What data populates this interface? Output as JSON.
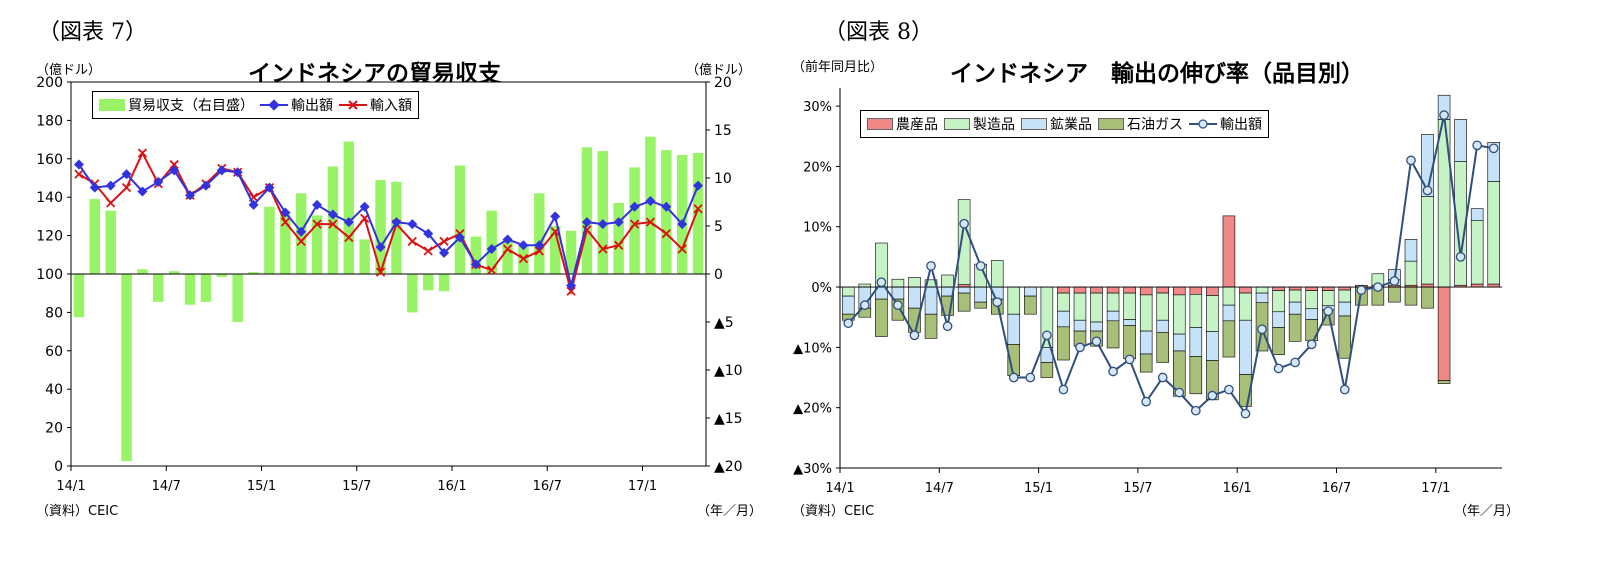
{
  "chart_data": [
    {
      "id": "fig7",
      "type": "bar+line",
      "figure_label": "（図表 7）",
      "title": "インドネシアの貿易収支",
      "ylabel_left": "（億ドル）",
      "ylabel_right": "（億ドル）",
      "xlabel": "（年／月）",
      "source": "（資料）CEIC",
      "ylim_left": [
        0,
        200
      ],
      "ylim_right": [
        -20,
        20
      ],
      "yticks_left": [
        "0",
        "20",
        "40",
        "60",
        "80",
        "100",
        "120",
        "140",
        "160",
        "180",
        "200"
      ],
      "yticks_right": [
        "▲20",
        "▲15",
        "▲10",
        "▲5",
        "0",
        "5",
        "10",
        "15",
        "20"
      ],
      "x_tick_labels": [
        "14/1",
        "14/7",
        "15/1",
        "15/7",
        "16/1",
        "16/7",
        "17/1"
      ],
      "legend": [
        "貿易収支（右目盛）",
        "輸出額",
        "輸入額"
      ],
      "colors": {
        "balance": "#99f366",
        "exports": "#3333dd",
        "imports": "#dd1111"
      },
      "months": [
        "14/1",
        "14/2",
        "14/3",
        "14/4",
        "14/5",
        "14/6",
        "14/7",
        "14/8",
        "14/9",
        "14/10",
        "14/11",
        "14/12",
        "15/1",
        "15/2",
        "15/3",
        "15/4",
        "15/5",
        "15/6",
        "15/7",
        "15/8",
        "15/9",
        "15/10",
        "15/11",
        "15/12",
        "16/1",
        "16/2",
        "16/3",
        "16/4",
        "16/5",
        "16/6",
        "16/7",
        "16/8",
        "16/9",
        "16/10",
        "16/11",
        "16/12",
        "17/1",
        "17/2",
        "17/3",
        "17/4"
      ],
      "series": [
        {
          "name": "貿易収支（右目盛）",
          "kind": "bar",
          "axis": "right",
          "values": [
            -4.5,
            7.8,
            6.6,
            -19.5,
            0.5,
            -2.9,
            0.3,
            -3.2,
            -2.9,
            -0.3,
            -5.0,
            0.2,
            7.0,
            6.5,
            8.4,
            6.1,
            11.2,
            13.8,
            3.6,
            9.8,
            9.6,
            -4.0,
            -1.7,
            -1.8,
            11.3,
            3.9,
            6.6,
            3.5,
            3.0,
            8.4,
            5.0,
            4.5,
            13.2,
            12.8,
            7.4,
            11.1,
            14.3,
            12.9,
            12.4,
            12.6
          ]
        },
        {
          "name": "輸出額",
          "kind": "line",
          "axis": "left",
          "values": [
            157,
            145,
            146,
            152,
            143,
            148,
            154,
            141,
            146,
            154,
            153,
            136,
            145,
            132,
            122,
            136,
            131,
            127,
            135,
            114,
            127,
            126,
            121,
            111,
            119,
            105,
            113,
            118,
            115,
            115,
            130,
            94,
            127,
            126,
            127,
            135,
            138,
            135,
            126,
            146
          ]
        },
        {
          "name": "輸入額",
          "kind": "line",
          "axis": "left",
          "values": [
            152,
            147,
            137,
            145,
            163,
            147,
            157,
            141,
            147,
            155,
            153,
            140,
            145,
            127,
            117,
            126,
            126,
            119,
            129,
            101,
            126,
            117,
            112,
            117,
            121,
            105,
            102,
            113,
            108,
            112,
            122,
            91,
            123,
            113,
            115,
            126,
            127,
            121,
            113,
            134
          ]
        }
      ]
    },
    {
      "id": "fig8",
      "type": "stacked-bar+line",
      "figure_label": "（図表 8）",
      "title": "インドネシア　輸出の伸び率（品目別）",
      "ylabel": "（前年同月比）",
      "xlabel": "（年／月）",
      "source": "（資料）CEIC",
      "ylim": [
        -30,
        33
      ],
      "yticks": [
        "▲30%",
        "▲20%",
        "▲10%",
        "0%",
        "10%",
        "20%",
        "30%"
      ],
      "x_tick_labels": [
        "14/1",
        "14/7",
        "15/1",
        "15/7",
        "16/1",
        "16/7",
        "17/1"
      ],
      "legend": [
        "農産品",
        "製造品",
        "鉱業品",
        "石油ガス",
        "輸出額"
      ],
      "colors": {
        "agri": "#f08888",
        "manuf": "#c6f3c6",
        "mining": "#c6e2f8",
        "oilgas": "#a8bf7a",
        "total_line": "#2f4f7f",
        "total_marker": "#d6e8f8"
      },
      "months": [
        "14/1",
        "14/2",
        "14/3",
        "14/4",
        "14/5",
        "14/6",
        "14/7",
        "14/8",
        "14/9",
        "14/10",
        "14/11",
        "14/12",
        "15/1",
        "15/2",
        "15/3",
        "15/4",
        "15/5",
        "15/6",
        "15/7",
        "15/8",
        "15/9",
        "15/10",
        "15/11",
        "15/12",
        "16/1",
        "16/2",
        "16/3",
        "16/4",
        "16/5",
        "16/6",
        "16/7",
        "16/8",
        "16/9",
        "16/10",
        "16/11",
        "16/12",
        "17/1",
        "17/2",
        "17/3",
        "17/4"
      ],
      "series": [
        {
          "name": "農産品",
          "kind": "stack",
          "values": [
            0,
            0,
            0,
            0,
            0,
            0,
            0,
            0.4,
            0,
            0,
            0,
            0,
            0,
            -1.0,
            -1.0,
            -1.0,
            -1.0,
            -1.0,
            -1.3,
            -1.0,
            -1.3,
            -1.2,
            -1.4,
            11.8,
            -1.0,
            0,
            -0.6,
            -0.5,
            -0.6,
            -0.6,
            -0.5,
            0.3,
            0.3,
            0.3,
            0.3,
            0.5,
            -15.5,
            0.3,
            0.5,
            0.5
          ]
        },
        {
          "name": "製造品",
          "kind": "stack",
          "values": [
            -1.5,
            0.5,
            7.3,
            1.3,
            1.6,
            1.2,
            2.0,
            14.1,
            3.8,
            4.4,
            -4.5,
            0,
            -10,
            -3.0,
            -4.5,
            -4.8,
            -3.0,
            -4.4,
            -6.0,
            -4.5,
            -6.5,
            -5.5,
            -6.0,
            -3.0,
            -4.5,
            -1.0,
            -3.5,
            -2.0,
            -3.0,
            -2.5,
            -2.0,
            0,
            1.9,
            0.9,
            4.0,
            14.5,
            27.8,
            20.5,
            10.5,
            17.0
          ]
        },
        {
          "name": "鉱業品",
          "kind": "stack",
          "values": [
            -3.0,
            -3.5,
            -2.0,
            -2.0,
            -3.5,
            -4.5,
            -1.5,
            -1.0,
            -2.5,
            -2.0,
            -5.0,
            -1.5,
            -2.5,
            -2.6,
            -1.8,
            -1.5,
            -1.6,
            -1.0,
            -3.8,
            -2.0,
            -2.8,
            -4.8,
            -4.8,
            -2.6,
            -9.0,
            -1.6,
            -2.6,
            -2.0,
            -1.8,
            -0.7,
            -2.3,
            0,
            0,
            1.7,
            3.6,
            10.3,
            4.0,
            7.0,
            2.0,
            6.5
          ]
        },
        {
          "name": "石油ガス",
          "kind": "stack",
          "values": [
            -1.0,
            -1.5,
            -6.2,
            -3.5,
            -4.0,
            -4.0,
            -3.2,
            -3.0,
            -1.0,
            -2.5,
            -5.2,
            -3.0,
            -2.5,
            -5.5,
            -2.5,
            -2.5,
            -4.5,
            -5.5,
            -3.0,
            -5.0,
            -7.5,
            -6.2,
            -6.5,
            -6.0,
            -5.3,
            -8.0,
            -4.5,
            -4.5,
            -3.5,
            -2.5,
            -7.0,
            -3.0,
            -3.0,
            -2.5,
            -3.0,
            -3.5,
            -0.5,
            0,
            0,
            0
          ]
        },
        {
          "name": "輸出額",
          "kind": "line",
          "values": [
            -6,
            -3,
            0.8,
            -3,
            -8,
            3.5,
            -6.5,
            10.5,
            3.5,
            -2.5,
            -15,
            -15,
            -8,
            -17,
            -10,
            -9,
            -14,
            -12,
            -19,
            -15,
            -17.5,
            -20.5,
            -18,
            -17,
            -21,
            -7,
            -13.5,
            -12.5,
            -9.5,
            -4,
            -17,
            -0.5,
            0,
            1,
            21,
            16,
            28.5,
            5,
            23.5,
            23
          ]
        }
      ]
    }
  ]
}
